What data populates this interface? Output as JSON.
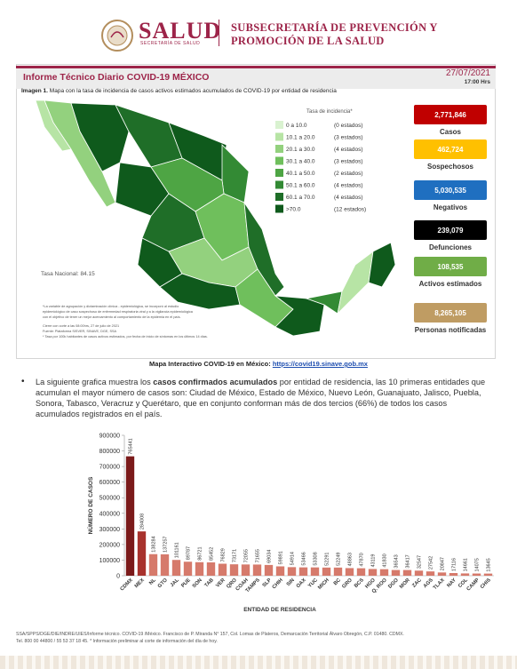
{
  "header": {
    "logo_word": "SALUD",
    "logo_sub": "SECRETARÍA DE SALUD",
    "agency_line1": "SUBSECRETARÍA DE PREVENCIÓN Y",
    "agency_line2": "PROMOCIÓN DE LA SALUD"
  },
  "report": {
    "title": "Informe Técnico Diario COVID-19 MÉXICO",
    "date": "27/07/2021",
    "time": "17:00 Hrs",
    "caption_label": "Imagen 1.",
    "caption": "Mapa con la tasa de incidencia de casos activos estimados acumulados de COVID-19 por entidad de residencia"
  },
  "map": {
    "legend_title": "Tasa de incidencia*",
    "legend": [
      {
        "range": "0  a  10.0",
        "count": "(0 estados)",
        "color": "#d9f2d0"
      },
      {
        "range": "10.1 a  20.0",
        "count": "(3 estados)",
        "color": "#b7e4a5"
      },
      {
        "range": "20.1 a  30.0",
        "count": "(4 estados)",
        "color": "#93d17e"
      },
      {
        "range": "30.1 a  40.0",
        "count": "(3 estados)",
        "color": "#6fbf5c"
      },
      {
        "range": "40.1 a  50.0",
        "count": "(2 estados)",
        "color": "#4ea544"
      },
      {
        "range": "50.1 a  60.0",
        "count": "(4 estados)",
        "color": "#338a34"
      },
      {
        "range": "60.1 a  70.0",
        "count": "(4 estados)",
        "color": "#1f6e28"
      },
      {
        "range": ">70.0",
        "count": "(12 estados)",
        "color": "#0f5a1c"
      }
    ],
    "national_rate": "Tasa Nacional: 84.15",
    "notes": [
      "*La variable de agrupación y dictaminación clínica - epidemiológica, se incorporó al estudio",
      "epidemiológico de caso sospechoso de enfermedad respiratoria viral y a la vigilancia epidemiológica",
      "con el objetivo de tener un mejor acercamiento al comportamiento de la epidemia en el país.",
      "Cierre con corte a las 08:00hrs, 27 de julio de 2021",
      "Fuente: Plataforma SISVER, SINAVE, DGE, SSA",
      "* Tasa por 100k habitantes de casos activos estimados, por fecha de inicio de síntomas en los últimos 14 días."
    ]
  },
  "stats": [
    {
      "value": "2,771,846",
      "label": "Casos",
      "color": "#c00000"
    },
    {
      "value": "462,724",
      "label": "Sospechosos",
      "color": "#ffc000"
    },
    {
      "value": "5,030,535",
      "label": "Negativos",
      "color": "#1f6fc0"
    },
    {
      "value": "239,079",
      "label": "Defunciones",
      "color": "#000000"
    },
    {
      "value": "108,535",
      "label": "Activos estimados",
      "color": "#70ad47"
    },
    {
      "value": "8,265,105",
      "label": "Personas notificadas",
      "color": "#bf9c63"
    }
  ],
  "link": {
    "label": "Mapa Interactivo COVID-19 en México: ",
    "url": "https://covid19.sinave.gob.mx"
  },
  "paragraph": {
    "part1": "La siguiente grafica muestra los ",
    "bold": "casos confirmados acumulados",
    "part2": " por entidad de residencia, las 10 primeras entidades que acumulan el mayor número de casos son: Ciudad de México, Estado de México, Nuevo León, Guanajuato, Jalisco, Puebla, Sonora, Tabasco, Veracruz y Querétaro, que en conjunto conforman más de dos tercios (66%) de todos los casos acumulados registrados en el país."
  },
  "chart_data": {
    "type": "bar",
    "y_label": "NÚMERO DE CASOS",
    "x_label": "ENTIDAD DE RESIDENCIA",
    "categories": [
      "CDMX",
      "MEX",
      "NL",
      "GTO",
      "JAL",
      "PUE",
      "SON",
      "TAB",
      "VER",
      "QRO",
      "COAH",
      "TAMPS",
      "SLP",
      "CHIH",
      "SIN",
      "OAX",
      "YUC",
      "MICH",
      "BC",
      "GRO",
      "BCS",
      "HGO",
      "Q. ROO",
      "DGO",
      "MOR",
      "ZAC",
      "AGS",
      "TLAX",
      "NAY",
      "COL",
      "CAMP",
      "CHIS"
    ],
    "values": [
      765441,
      284008,
      138284,
      137257,
      101161,
      89787,
      86721,
      85452,
      76829,
      73171,
      72055,
      71655,
      69034,
      59891,
      54914,
      53466,
      53308,
      52291,
      52249,
      48863,
      47870,
      43119,
      41830,
      36543,
      36417,
      32547,
      27542,
      20847,
      17116,
      14661,
      14075,
      13645
    ],
    "colors": [
      "#7b1a1a",
      "#a8322d",
      "#d67a6b",
      "#d67a6b",
      "#d67a6b",
      "#d67a6b",
      "#d67a6b",
      "#d67a6b",
      "#d67a6b",
      "#d67a6b",
      "#d67a6b",
      "#d67a6b",
      "#d67a6b",
      "#d67a6b",
      "#d67a6b",
      "#d67a6b",
      "#d67a6b",
      "#d67a6b",
      "#d67a6b",
      "#d67a6b",
      "#d67a6b",
      "#d67a6b",
      "#d67a6b",
      "#d67a6b",
      "#d67a6b",
      "#d67a6b",
      "#d67a6b",
      "#d67a6b",
      "#d67a6b",
      "#d67a6b",
      "#d67a6b",
      "#d67a6b"
    ],
    "ylim": [
      0,
      900000
    ],
    "yticks": [
      0,
      100000,
      200000,
      300000,
      400000,
      500000,
      600000,
      700000,
      800000,
      900000
    ]
  },
  "footer": {
    "line1": "SSA/SPPS/DGE/DIE/INDRE/UIES/Informe técnico. COVID-19 /México. Francisco de P. Miranda N° 157, Col. Lomas de Plateros, Demarcación Territorial Álvaro Obregón, C.P. 01480. CDMX.",
    "line2": "Tel. 800 00 44800 / 55 53 37 18 45. * Información preliminar al corte de información del día de hoy."
  }
}
